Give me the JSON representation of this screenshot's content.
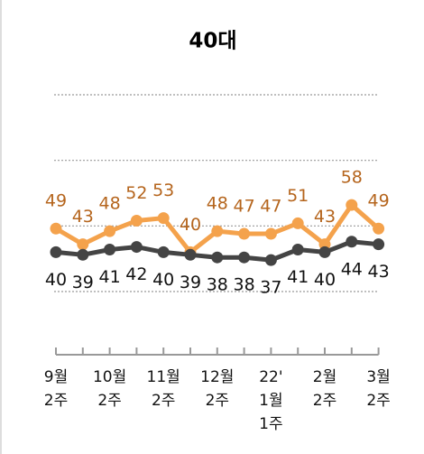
{
  "chart_data": {
    "type": "line",
    "title": "40대",
    "categories": [
      "9월\n2주",
      null,
      "10월\n2주",
      null,
      "11월\n2주",
      null,
      "12월\n2주",
      null,
      "22'\n1월\n1주",
      null,
      "2월\n2주",
      null,
      "3월\n2주"
    ],
    "series": [
      {
        "color": "#f4a24c",
        "label_color": "#b5651d",
        "values": [
          49,
          43,
          48,
          52,
          53,
          40,
          48,
          47,
          47,
          51,
          43,
          58,
          49
        ]
      },
      {
        "color": "#444444",
        "label_color": "#111111",
        "values": [
          40,
          39,
          41,
          42,
          40,
          39,
          38,
          38,
          37,
          41,
          40,
          44,
          43
        ]
      }
    ],
    "ylim": [
      25,
      100
    ],
    "yticks": [
      25,
      50,
      75,
      100
    ],
    "grid": true
  }
}
